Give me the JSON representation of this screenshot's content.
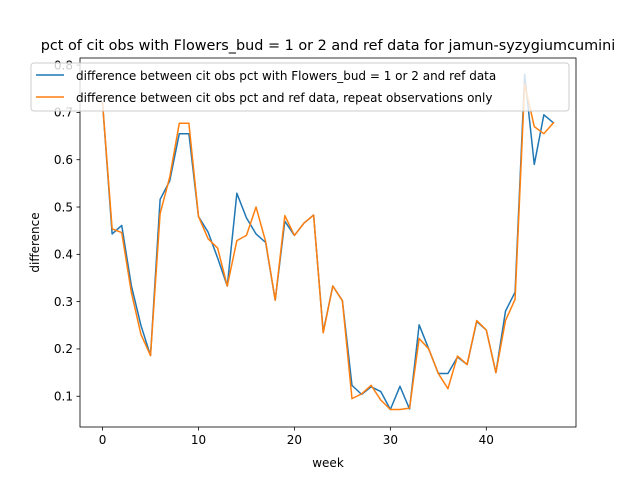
{
  "chart_data": {
    "type": "line",
    "title": "pct of cit obs with Flowers_bud = 1 or 2 and ref data for jamun-syzygiumcumini",
    "xlabel": "week",
    "ylabel": "difference",
    "xlim": [
      -2.35,
      49.35
    ],
    "ylim": [
      0.035,
      0.815
    ],
    "x_ticks": [
      0,
      10,
      20,
      30,
      40
    ],
    "y_ticks": [
      0.1,
      0.2,
      0.3,
      0.4,
      0.5,
      0.6,
      0.7,
      0.8
    ],
    "grid": false,
    "legend_position": "top-center",
    "x": [
      0,
      1,
      2,
      3,
      4,
      5,
      6,
      7,
      8,
      9,
      10,
      11,
      12,
      13,
      14,
      15,
      16,
      17,
      18,
      19,
      20,
      21,
      22,
      23,
      24,
      25,
      26,
      27,
      28,
      29,
      30,
      31,
      32,
      33,
      34,
      35,
      36,
      37,
      38,
      39,
      40,
      41,
      42,
      43,
      44,
      45,
      46,
      47
    ],
    "series": [
      {
        "name": "difference between cit obs pct with Flowers_bud = 1 or 2 and ref data",
        "color": "#1f77b4",
        "values": [
          0.72,
          0.443,
          0.461,
          0.334,
          0.25,
          0.186,
          0.516,
          0.555,
          0.655,
          0.655,
          0.48,
          0.447,
          0.392,
          0.333,
          0.529,
          0.477,
          0.443,
          0.425,
          0.303,
          0.47,
          0.44,
          0.466,
          0.483,
          0.236,
          0.333,
          0.302,
          0.123,
          0.104,
          0.12,
          0.11,
          0.072,
          0.121,
          0.073,
          0.251,
          0.2,
          0.148,
          0.148,
          0.183,
          0.167,
          0.258,
          0.24,
          0.15,
          0.28,
          0.32,
          0.78,
          0.59,
          0.695,
          0.678
        ]
      },
      {
        "name": "difference between cit obs pct and ref data, repeat observations only",
        "color": "#ff7f0e",
        "values": [
          0.72,
          0.454,
          0.446,
          0.32,
          0.231,
          0.186,
          0.486,
          0.563,
          0.677,
          0.677,
          0.48,
          0.433,
          0.413,
          0.333,
          0.429,
          0.44,
          0.5,
          0.427,
          0.303,
          0.482,
          0.44,
          0.466,
          0.483,
          0.234,
          0.333,
          0.302,
          0.095,
          0.105,
          0.123,
          0.092,
          0.072,
          0.072,
          0.075,
          0.222,
          0.2,
          0.148,
          0.116,
          0.185,
          0.167,
          0.26,
          0.24,
          0.15,
          0.26,
          0.305,
          0.76,
          0.67,
          0.655,
          0.678
        ]
      }
    ]
  }
}
